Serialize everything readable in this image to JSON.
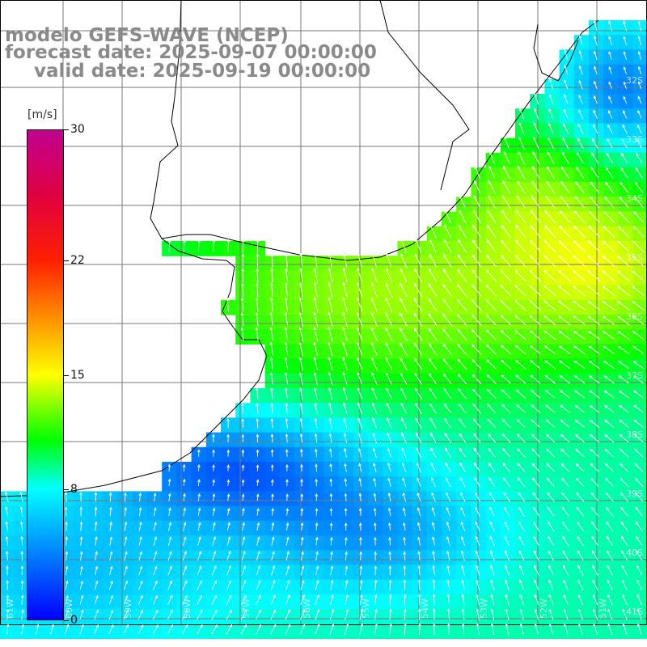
{
  "title": {
    "line1": "modelo GEFS-WAVE (NCEP)",
    "line2": "forecast date: 2025-09-07 00:00:00",
    "line3": "valid date: 2025-09-19 00:00:00"
  },
  "colorbar": {
    "unit": "[m/s]",
    "range": [
      0,
      30
    ],
    "ticks": [
      {
        "label": "30",
        "value": 30
      },
      {
        "label": "22",
        "value": 22
      },
      {
        "label": "15",
        "value": 15
      },
      {
        "label": "8",
        "value": 8
      },
      {
        "label": "0",
        "value": 0
      }
    ],
    "stops": [
      {
        "value": 0,
        "color": "#0000ff"
      },
      {
        "value": 4,
        "color": "#0080ff"
      },
      {
        "value": 8,
        "color": "#00ffff"
      },
      {
        "value": 11,
        "color": "#00ff00"
      },
      {
        "value": 15,
        "color": "#ffff00"
      },
      {
        "value": 19,
        "color": "#ff8000"
      },
      {
        "value": 22,
        "color": "#ff2000"
      },
      {
        "value": 26,
        "color": "#e00040"
      },
      {
        "value": 30,
        "color": "#c00090"
      }
    ]
  },
  "latitude_labels": [
    "32S",
    "33S",
    "34S",
    "35S",
    "36S",
    "37S",
    "38S",
    "39S",
    "40S",
    "41S"
  ],
  "longitude_labels": [
    "61W",
    "60W",
    "59W",
    "58W",
    "57W",
    "56W",
    "55W",
    "54W",
    "53W",
    "52W",
    "51W"
  ],
  "map": {
    "grid_color": "#777777",
    "coast_color": "#000000",
    "arrow_color": "#ffffff"
  }
}
